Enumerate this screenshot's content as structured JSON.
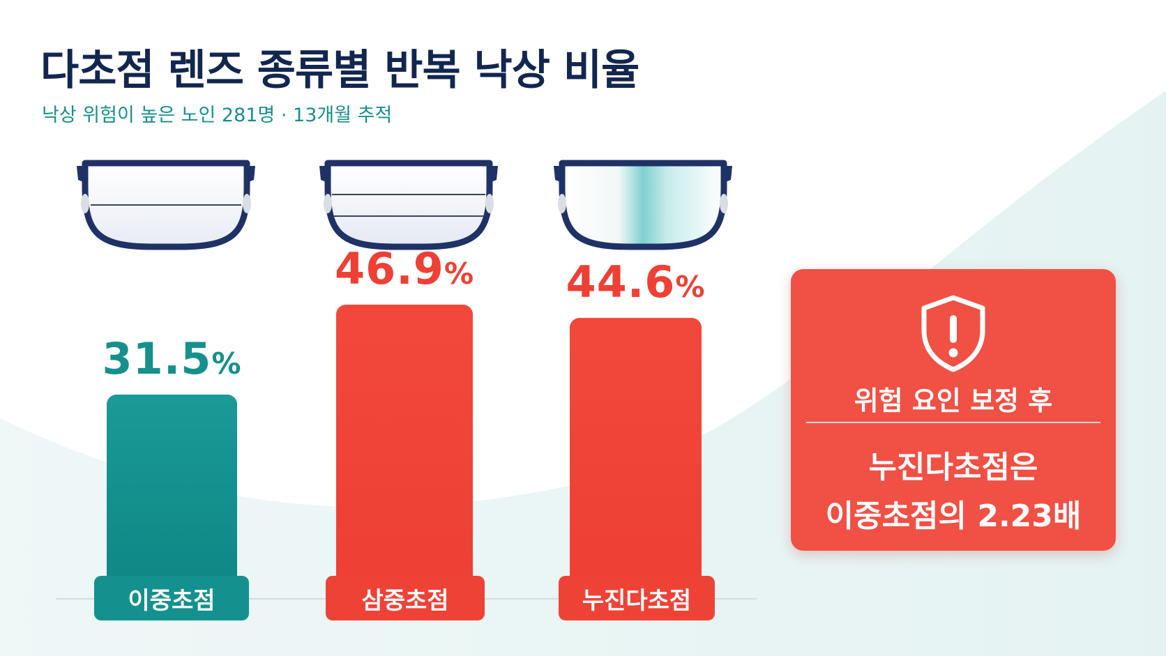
{
  "header": {
    "title": "다초점 렌즈 종류별 반복 낙상 비율",
    "subtitle": "낙상 위험이 높은 노인 281명 · 13개월 추적"
  },
  "colors": {
    "teal": "#14918e",
    "red": "#ee4034",
    "navy": "#12264f"
  },
  "chart_data": {
    "type": "bar",
    "title": "다초점 렌즈 종류별 반복 낙상 비율",
    "subtitle": "낙상 위험이 높은 노인 281명 · 13개월 추적",
    "categories": [
      "이중초점",
      "삼중초점",
      "누진다초점"
    ],
    "values": [
      31.5,
      46.9,
      44.6
    ],
    "unit": "%",
    "value_labels": [
      "31.5",
      "46.9",
      "44.6"
    ],
    "bar_colors": [
      "#14918e",
      "#ee4034",
      "#ee4034"
    ],
    "ylim": [
      0,
      90
    ],
    "grid": false
  },
  "glasses_icons": [
    "bifocal-glasses-icon",
    "trifocal-glasses-icon",
    "progressive-glasses-icon"
  ],
  "callout": {
    "icon": "shield-alert-icon",
    "heading": "위험 요인 보정 후",
    "line1": "누진다초점은",
    "line2": "이중초점의 2.23배"
  }
}
